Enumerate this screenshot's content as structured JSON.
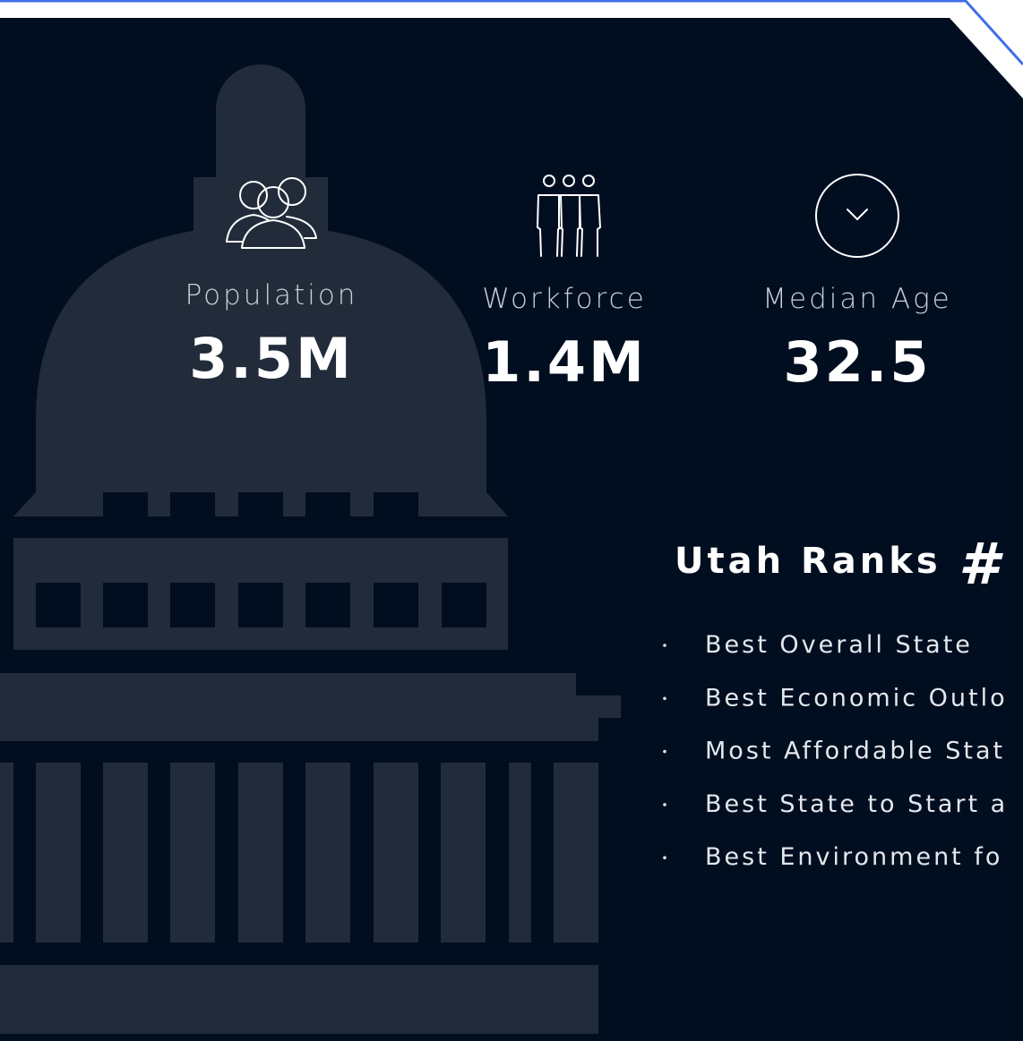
{
  "stats": [
    {
      "label": "Population",
      "value": "3.5M"
    },
    {
      "label": "Workforce",
      "value": "1.4M"
    },
    {
      "label": "Median Age",
      "value": "32.5"
    }
  ],
  "ranks": {
    "heading": "Utah Ranks",
    "mark": "#",
    "items": [
      "Best Overall State",
      "Best Economic Outlo",
      "Most Affordable Stat",
      "Best State to Start a",
      "Best Environment fo"
    ]
  }
}
